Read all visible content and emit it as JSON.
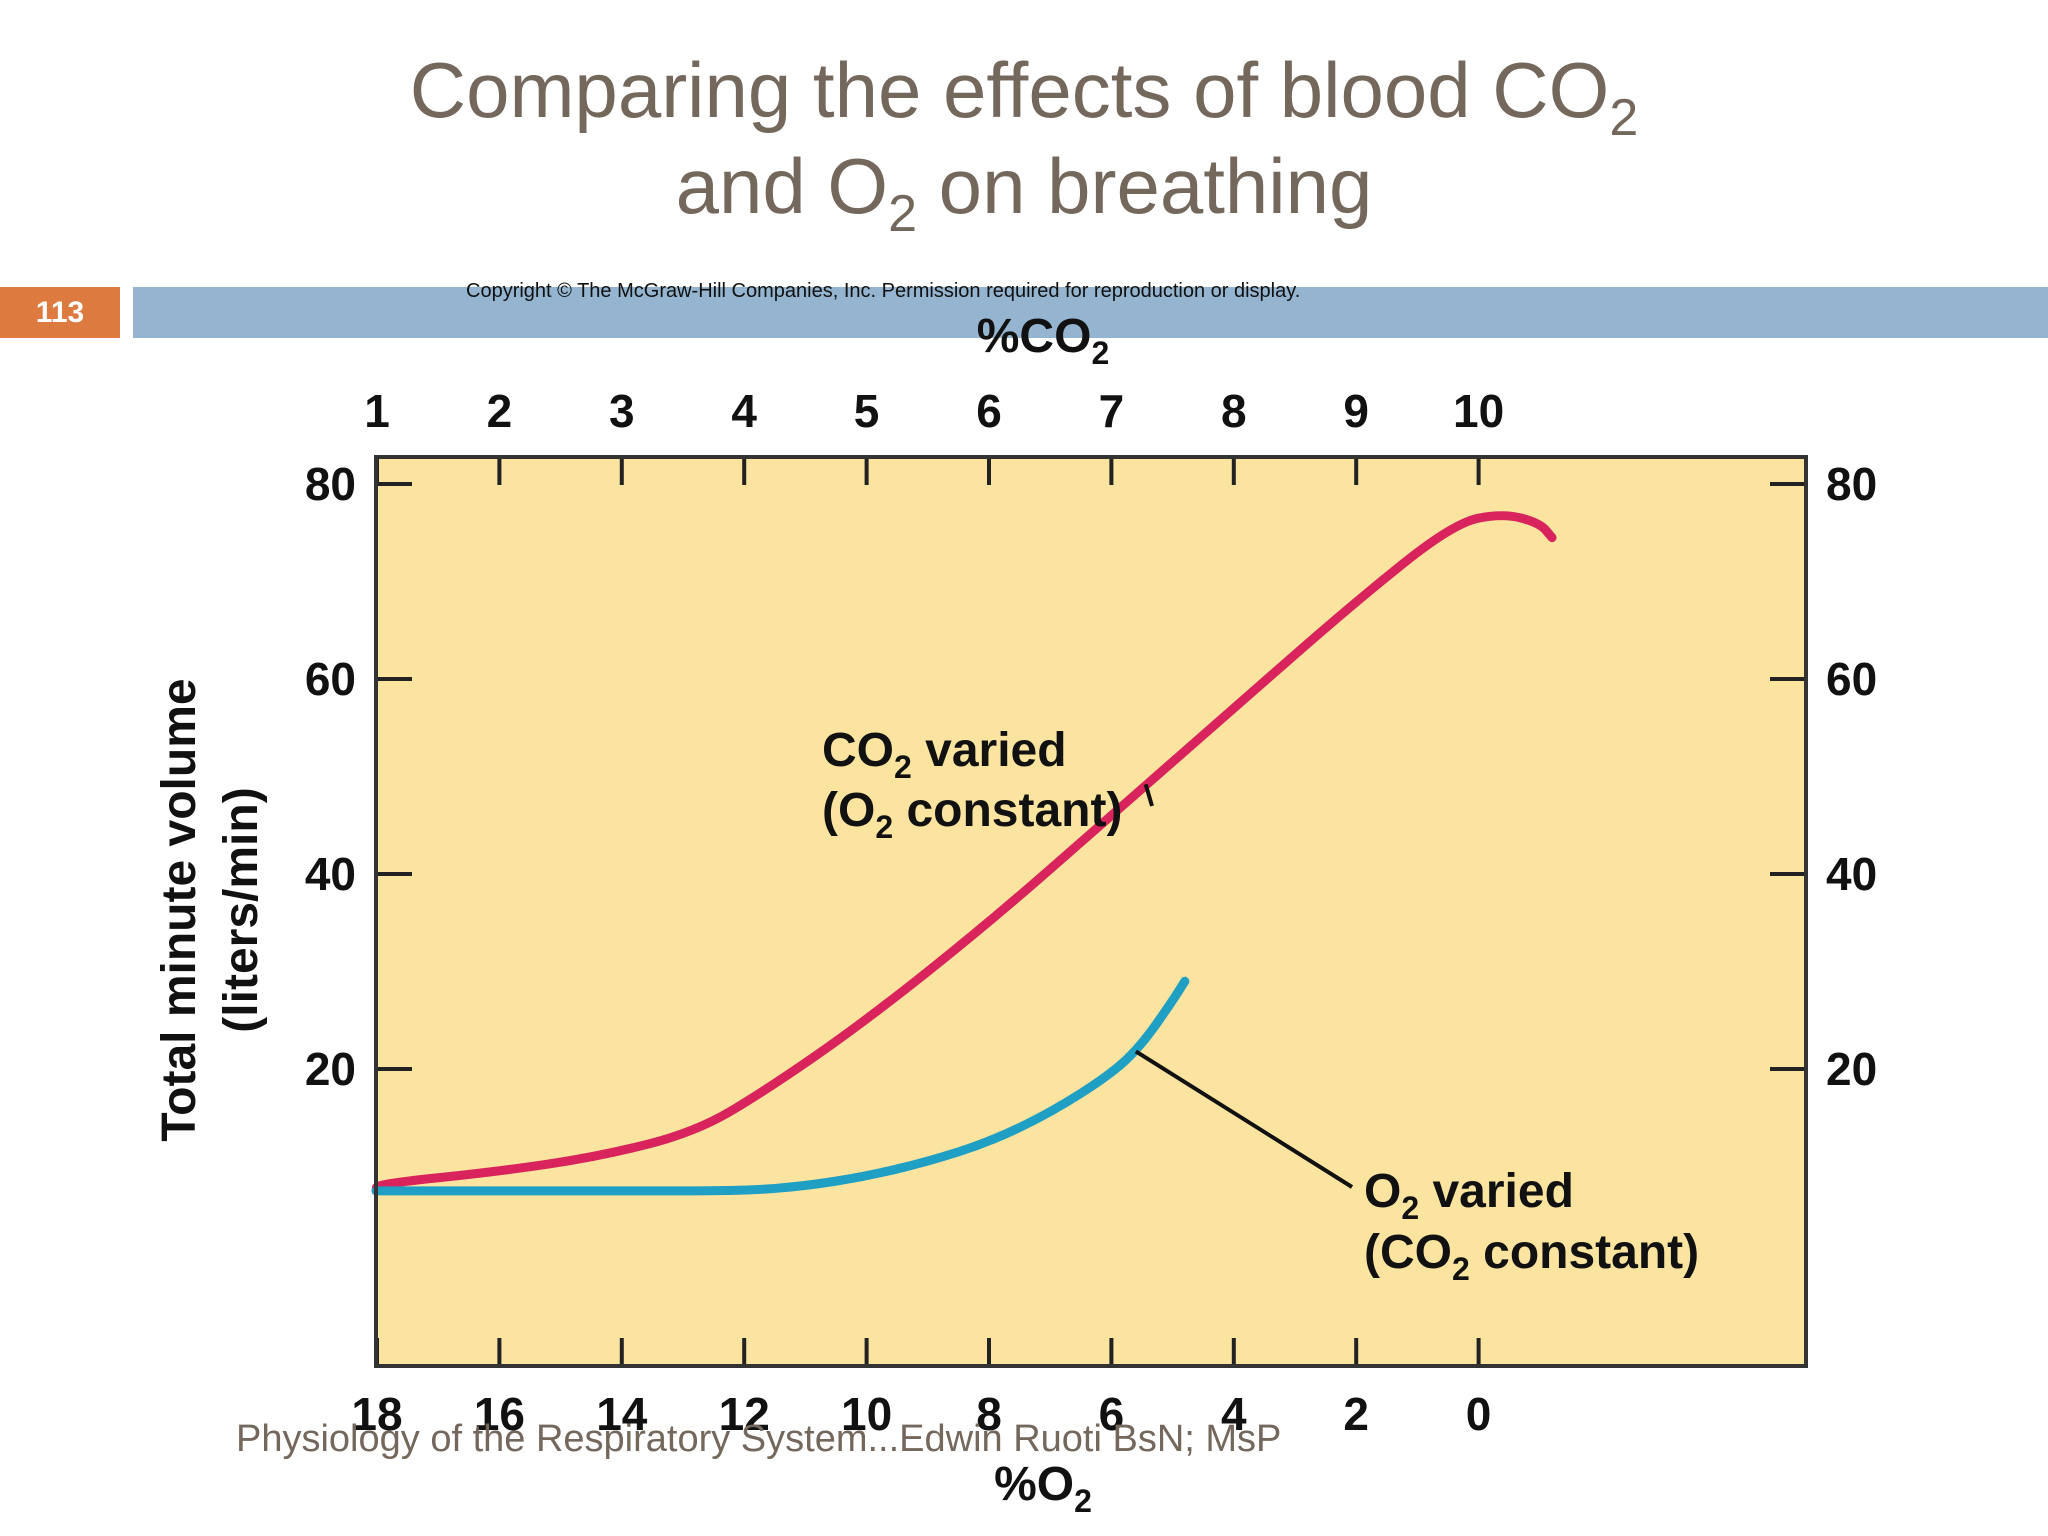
{
  "slide": {
    "title_line1_text": "Comparing the effects of blood CO",
    "title_line1_sub": "2",
    "title_line2_a": "and O",
    "title_line2_sub": "2",
    "title_line2_b": " on breathing",
    "page_number": "113",
    "copyright": "Copyright © The McGraw-Hill Companies, Inc. Permission required for reproduction or display.",
    "footer": "Physiology of the Respiratory System...Edwin Ruoti BsN; MsP",
    "colors": {
      "title": "#74675c",
      "badge": "#dd7a3f",
      "banner": "#94b4cf",
      "plot_bg": "#fbe4a0"
    }
  },
  "chart_data": {
    "type": "line",
    "x_top_label": {
      "main": "%CO",
      "sub": "2"
    },
    "x_bottom_label": {
      "main": "%O",
      "sub": "2"
    },
    "ylabel_line1": "Total minute volume",
    "ylabel_line2": "(liters/min)",
    "x_top_ticks": [
      "1",
      "2",
      "3",
      "4",
      "5",
      "6",
      "7",
      "8",
      "9",
      "10"
    ],
    "x_bottom_ticks": [
      "18",
      "16",
      "14",
      "12",
      "10",
      "8",
      "6",
      "4",
      "2",
      "0"
    ],
    "y_ticks": [
      "20",
      "40",
      "60",
      "80"
    ],
    "ylim": [
      -3,
      90
    ],
    "xlim_co2": [
      0.03,
      11.75
    ],
    "series": [
      {
        "name": "CO2 varied (O2 constant)",
        "axis": "%CO2",
        "color": "#d8235c",
        "points": [
          [
            0.03,
            7.5
          ],
          [
            1,
            8.2
          ],
          [
            2,
            9.5
          ],
          [
            2.8,
            11
          ],
          [
            3.6,
            13.5
          ],
          [
            4.2,
            18
          ],
          [
            5,
            25
          ],
          [
            6,
            35
          ],
          [
            7,
            46
          ],
          [
            8,
            57
          ],
          [
            9,
            68
          ],
          [
            9.8,
            76
          ],
          [
            10.2,
            77
          ],
          [
            10.5,
            76
          ],
          [
            10.6,
            74.5
          ]
        ]
      },
      {
        "name": "O2 varied (CO2 constant)",
        "axis": "%O2",
        "color": "#1e9fc3",
        "points": [
          [
            19.7,
            7.5
          ],
          [
            18,
            7.5
          ],
          [
            16,
            7.5
          ],
          [
            14,
            7.5
          ],
          [
            12,
            7.5
          ],
          [
            11,
            8
          ],
          [
            10,
            9
          ],
          [
            9,
            10.5
          ],
          [
            8,
            12.5
          ],
          [
            7,
            15.5
          ],
          [
            6,
            19.5
          ],
          [
            5.5,
            22.5
          ],
          [
            5,
            27
          ],
          [
            4.8,
            29
          ]
        ]
      }
    ],
    "annotations": [
      {
        "line1_a": "CO",
        "line1_sub": "2",
        "line1_b": " varied",
        "line2_a": "(O",
        "line2_sub": "2",
        "line2_b": " constant)"
      },
      {
        "line1_a": "O",
        "line1_sub": "2",
        "line1_b": " varied",
        "line2_a": "(CO",
        "line2_sub": "2",
        "line2_b": " constant)"
      }
    ],
    "grid": false,
    "legend": "none"
  }
}
